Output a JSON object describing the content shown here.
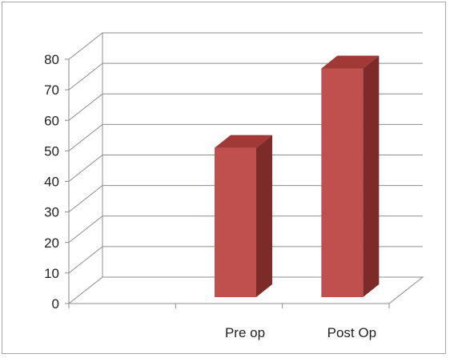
{
  "chart_data": {
    "type": "bar",
    "style": "3d-column",
    "categories": [
      "",
      "Pre op",
      "Post Op"
    ],
    "values": [
      null,
      51,
      77
    ],
    "ylim": [
      0,
      80
    ],
    "yticks": [
      0,
      10,
      20,
      30,
      40,
      50,
      60,
      70,
      80
    ],
    "grid": true,
    "legend": "none",
    "title": "",
    "xlabel": "",
    "ylabel": "",
    "colors": {
      "bar_front": "#c0504d",
      "bar_top": "#a13a37",
      "bar_side": "#7d2b29",
      "grid": "#8c8c8c",
      "axis": "#8c8c8c"
    }
  }
}
